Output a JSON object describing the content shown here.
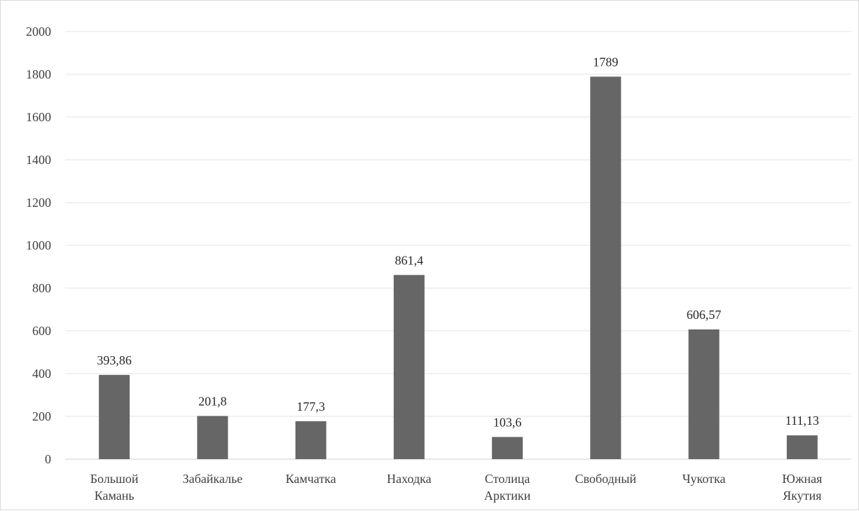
{
  "chart_data": {
    "type": "bar",
    "categories": [
      [
        "Большой",
        "Камань"
      ],
      [
        "Забайкалье"
      ],
      [
        "Камчатка"
      ],
      [
        "Находка"
      ],
      [
        "Столица",
        "Арктики"
      ],
      [
        "Свободный"
      ],
      [
        "Чукотка"
      ],
      [
        "Южная",
        "Якутия"
      ]
    ],
    "values": [
      393.86,
      201.8,
      177.3,
      861.4,
      103.6,
      1789,
      606.57,
      111.13
    ],
    "data_labels": [
      "393,86",
      "201,8",
      "177,3",
      "861,4",
      "103,6",
      "1789",
      "606,57",
      "111,13"
    ],
    "yticks": [
      "0",
      "200",
      "400",
      "600",
      "800",
      "1000",
      "1200",
      "1400",
      "1600",
      "1800",
      "2000"
    ],
    "ylim": [
      0,
      2000
    ],
    "title": "",
    "xlabel": "",
    "ylabel": "",
    "grid": true,
    "legend": "none",
    "bar_color": "#666666"
  }
}
